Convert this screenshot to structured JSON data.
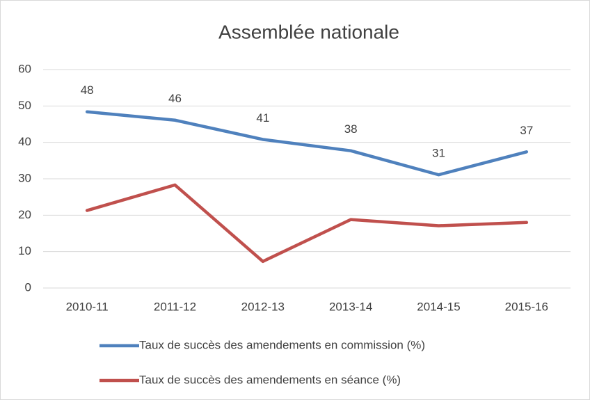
{
  "chart_data": {
    "type": "line",
    "title": "Assemblée nationale",
    "categories": [
      "2010-11",
      "2011-12",
      "2012-13",
      "2013-14",
      "2014-15",
      "2015-16"
    ],
    "series": [
      {
        "name": "Taux de succès des amendements en commission (%)",
        "color": "#4f81bd",
        "values": [
          48.4,
          46.1,
          40.8,
          37.7,
          31.1,
          37.4
        ],
        "value_labels": [
          "48",
          "46",
          "41",
          "38",
          "31",
          "37"
        ]
      },
      {
        "name": "Taux de succès des amendements en séance (%)",
        "color": "#c0504d",
        "values": [
          21.3,
          28.3,
          7.3,
          18.8,
          17.1,
          18.0
        ]
      }
    ],
    "ylim": [
      0,
      60
    ],
    "yticks": [
      0,
      10,
      20,
      30,
      40,
      50,
      60
    ],
    "grid": true,
    "legend": "bottom"
  }
}
